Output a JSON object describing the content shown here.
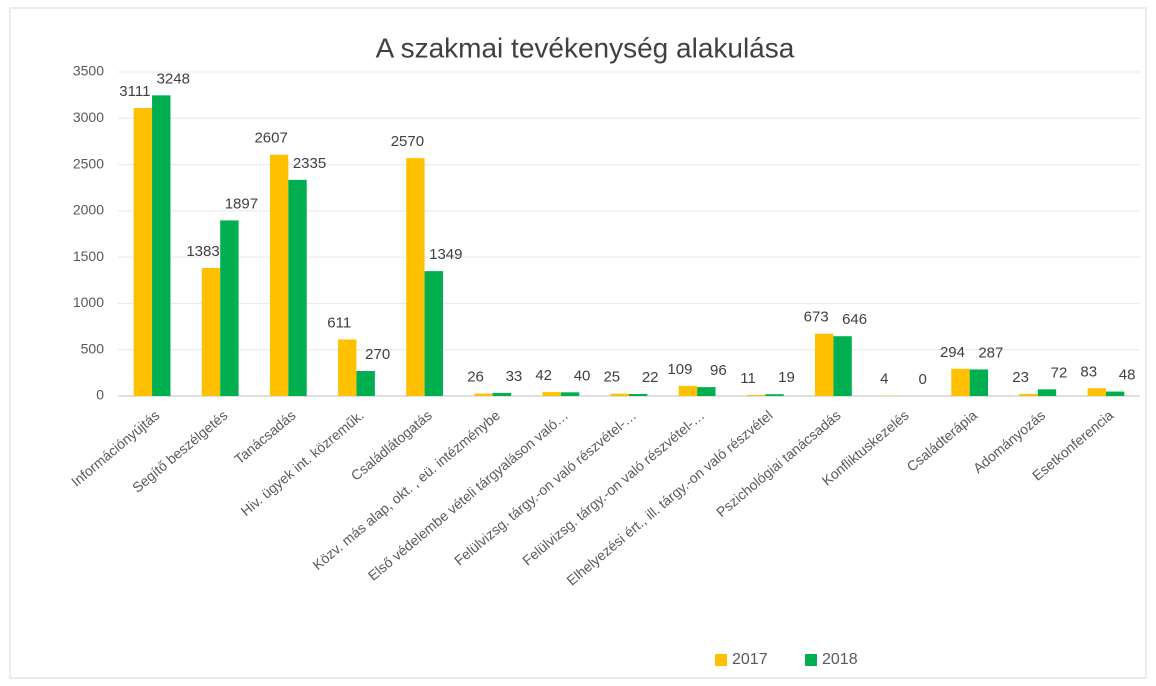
{
  "chart_data": {
    "type": "bar",
    "title": "A szakmai tevékenység alakulása",
    "categories": [
      "Információnyújtás",
      "Segítő beszélgetés",
      "Tanácsadás",
      "Hiv. ügyek int. közreműk.",
      "Családlátogatás",
      "Közv. más alap, okt. , eü. intézménybe",
      "Első védelembe vételi tárgyaláson való…",
      "Felülvizsg. tárgy.-on való részvétel-…",
      "Felülvizsg. tárgy.-on való részvétel-…",
      "Elhelyezési ért., ill. tárgy.-on való részvétel",
      "Pszichológiai tanácsadás",
      "Konfliktuskezelés",
      "Családterápia",
      "Adományozás",
      "Esetkonferencia"
    ],
    "series": [
      {
        "name": "2017",
        "color": "#FFC000",
        "values": [
          3111,
          1383,
          2607,
          611,
          2570,
          26,
          42,
          25,
          109,
          11,
          673,
          4,
          294,
          23,
          83
        ]
      },
      {
        "name": "2018",
        "color": "#00B050",
        "values": [
          3248,
          1897,
          2335,
          270,
          1349,
          33,
          40,
          22,
          96,
          19,
          646,
          0,
          287,
          72,
          48
        ]
      }
    ],
    "ylim": [
      0,
      3500
    ],
    "yticks": [
      0,
      500,
      1000,
      1500,
      2000,
      2500,
      3000,
      3500
    ],
    "grid": true,
    "legend": "bottom"
  }
}
